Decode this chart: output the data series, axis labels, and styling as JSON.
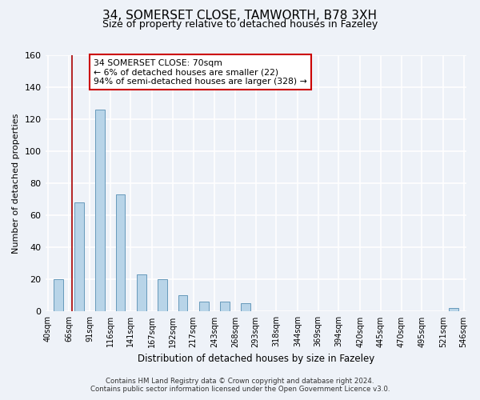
{
  "title_line1": "34, SOMERSET CLOSE, TAMWORTH, B78 3XH",
  "title_line2": "Size of property relative to detached houses in Fazeley",
  "xlabel": "Distribution of detached houses by size in Fazeley",
  "ylabel": "Number of detached properties",
  "bar_edges": [
    40,
    66,
    91,
    116,
    141,
    167,
    192,
    217,
    243,
    268,
    293,
    318,
    344,
    369,
    394,
    420,
    445,
    470,
    495,
    521,
    546
  ],
  "bar_heights": [
    20,
    68,
    126,
    73,
    23,
    20,
    10,
    6,
    6,
    5,
    0,
    0,
    0,
    0,
    0,
    0,
    0,
    0,
    0,
    2
  ],
  "bar_color": "#b8d4e8",
  "bar_edge_color": "#6699bb",
  "reference_line_x": 70,
  "reference_line_color": "#aa0000",
  "ylim": [
    0,
    160
  ],
  "yticks": [
    0,
    20,
    40,
    60,
    80,
    100,
    120,
    140,
    160
  ],
  "annotation_text_line1": "34 SOMERSET CLOSE: 70sqm",
  "annotation_text_line2": "← 6% of detached houses are smaller (22)",
  "annotation_text_line3": "94% of semi-detached houses are larger (328) →",
  "footer_line1": "Contains HM Land Registry data © Crown copyright and database right 2024.",
  "footer_line2": "Contains public sector information licensed under the Open Government Licence v3.0.",
  "background_color": "#eef2f8",
  "plot_bg_color": "#eef2f8",
  "grid_color": "#ffffff"
}
